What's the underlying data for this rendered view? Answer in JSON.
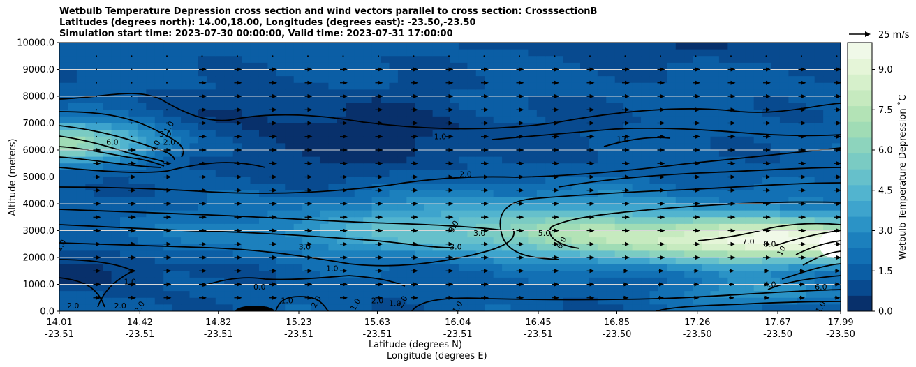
{
  "titles": {
    "line1": "Wetbulb Temperature Depression cross section and wind vectors parallel to cross section: CrosssectionB",
    "line2": "Latitudes (degrees north): 14.00,18.00, Longitudes (degrees east): -23.50,-23.50",
    "line3": "Simulation start time: 2023-07-30 00:00:00, Valid time: 2023-07-31 17:00:00"
  },
  "chart_data": {
    "type": "heatmap",
    "title": "Wetbulb Temperature Depression cross section and wind vectors parallel to cross section: CrosssectionB",
    "xlabel_line1": "Latitude (degrees N)",
    "xlabel_line2": "Longitude (degrees E)",
    "ylabel": "Altitude (meters)",
    "ylim": [
      0,
      10000
    ],
    "x_ticks": [
      {
        "lat": "14.01",
        "lon": "-23.51"
      },
      {
        "lat": "14.42",
        "lon": "-23.51"
      },
      {
        "lat": "14.82",
        "lon": "-23.51"
      },
      {
        "lat": "15.23",
        "lon": "-23.51"
      },
      {
        "lat": "15.63",
        "lon": "-23.51"
      },
      {
        "lat": "16.04",
        "lon": "-23.51"
      },
      {
        "lat": "16.45",
        "lon": "-23.51"
      },
      {
        "lat": "16.85",
        "lon": "-23.50"
      },
      {
        "lat": "17.26",
        "lon": "-23.50"
      },
      {
        "lat": "17.67",
        "lon": "-23.50"
      },
      {
        "lat": "17.99",
        "lon": "-23.50"
      }
    ],
    "y_ticks": [
      "0.0",
      "1000.0",
      "2000.0",
      "3000.0",
      "4000.0",
      "5000.0",
      "6000.0",
      "7000.0",
      "8000.0",
      "9000.0",
      "10000.0"
    ],
    "colorbar": {
      "label": "Wetbulb Temperature Depression ˚C",
      "ticks": [
        "0.0",
        "1.5",
        "3.0",
        "4.5",
        "6.0",
        "7.5",
        "9.0"
      ],
      "range": [
        0,
        10
      ],
      "colors": [
        "#08306b",
        "#084a8f",
        "#0b5ea5",
        "#1270b4",
        "#1c80bd",
        "#2b93c6",
        "#3ea4cd",
        "#52b4cf",
        "#66c0cb",
        "#7acbc3",
        "#8dd4bd",
        "#a0dcb5",
        "#b3e3b6",
        "#c6eabf",
        "#d6f0cb",
        "#e5f5d8",
        "#f0f9e8"
      ]
    },
    "quiver_key": {
      "label": "25 m/s"
    },
    "contour_labels": [
      {
        "text": "1.0",
        "lat": 14.03,
        "alt": 2400
      },
      {
        "text": "2.0",
        "lat": 14.08,
        "alt": 100
      },
      {
        "text": "6.0",
        "lat": 14.28,
        "alt": 6200
      },
      {
        "text": "4.0",
        "lat": 14.51,
        "alt": 6100
      },
      {
        "text": "3.0",
        "lat": 14.55,
        "alt": 6500
      },
      {
        "text": "2.0",
        "lat": 14.57,
        "alt": 6200
      },
      {
        "text": "1.0",
        "lat": 14.58,
        "alt": 6800
      },
      {
        "text": "1.0",
        "lat": 14.37,
        "alt": 1000
      },
      {
        "text": "2.0",
        "lat": 14.32,
        "alt": 100
      },
      {
        "text": "2.0",
        "lat": 14.43,
        "alt": 100
      },
      {
        "text": "0.0",
        "lat": 15.03,
        "alt": 800
      },
      {
        "text": "1.0",
        "lat": 15.17,
        "alt": 300
      },
      {
        "text": "2.0",
        "lat": 15.33,
        "alt": 300
      },
      {
        "text": "3.0",
        "lat": 15.26,
        "alt": 2300
      },
      {
        "text": "1.0",
        "lat": 15.4,
        "alt": 1500
      },
      {
        "text": "1.0",
        "lat": 15.53,
        "alt": 200
      },
      {
        "text": "2.0",
        "lat": 15.63,
        "alt": 300
      },
      {
        "text": "1.0",
        "lat": 15.72,
        "alt": 200
      },
      {
        "text": "2.0",
        "lat": 15.77,
        "alt": 300
      },
      {
        "text": "1.0",
        "lat": 15.95,
        "alt": 6400
      },
      {
        "text": "2.0",
        "lat": 16.08,
        "alt": 5000
      },
      {
        "text": "3.0",
        "lat": 16.03,
        "alt": 3100
      },
      {
        "text": "3.0",
        "lat": 16.03,
        "alt": 2300
      },
      {
        "text": "3.0",
        "lat": 16.15,
        "alt": 2800
      },
      {
        "text": "1.0",
        "lat": 16.05,
        "alt": 100
      },
      {
        "text": "1.0",
        "lat": 16.88,
        "alt": 6300
      },
      {
        "text": "5.0",
        "lat": 16.48,
        "alt": 2800
      },
      {
        "text": "6.0",
        "lat": 16.58,
        "alt": 2500
      },
      {
        "text": "7.0",
        "lat": 17.52,
        "alt": 2500
      },
      {
        "text": "8.0",
        "lat": 17.63,
        "alt": 2400
      },
      {
        "text": "10",
        "lat": 17.7,
        "alt": 2200
      },
      {
        "text": "4.0",
        "lat": 17.63,
        "alt": 900
      },
      {
        "text": "6.0",
        "lat": 17.89,
        "alt": 800
      },
      {
        "text": "1.0",
        "lat": 17.9,
        "alt": 100
      }
    ]
  }
}
